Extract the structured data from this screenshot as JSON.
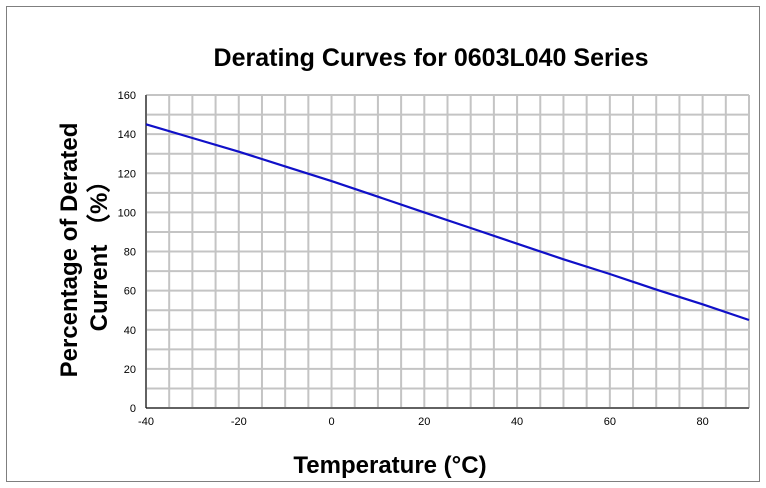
{
  "chart_data": {
    "type": "line",
    "title": "Derating Curves for 0603L040 Series",
    "xlabel": "Temperature (°C)",
    "ylabel_lines": [
      "Percentage of Derated",
      "Current （%）"
    ],
    "xlim": [
      -40,
      90
    ],
    "ylim": [
      0,
      160
    ],
    "x_ticks": [
      -40,
      -20,
      0,
      20,
      40,
      60,
      80
    ],
    "y_ticks": [
      0,
      20,
      40,
      60,
      80,
      100,
      120,
      140,
      160
    ],
    "x_minor_step": 5,
    "y_minor_step": 10,
    "grid": true,
    "series": [
      {
        "x": [
          -40,
          -30,
          -20,
          -10,
          0,
          10,
          20,
          30,
          40,
          50,
          60,
          70,
          80,
          90
        ],
        "y": [
          145,
          138,
          131,
          123.5,
          116,
          108,
          100,
          92,
          84,
          76,
          68.5,
          60.5,
          53,
          45
        ],
        "color": "#1010c8"
      }
    ]
  },
  "colors": {
    "grid": "#c4c4c4",
    "axis": "#000000",
    "line": "#1010c8",
    "frame": "#7f7f7f"
  }
}
